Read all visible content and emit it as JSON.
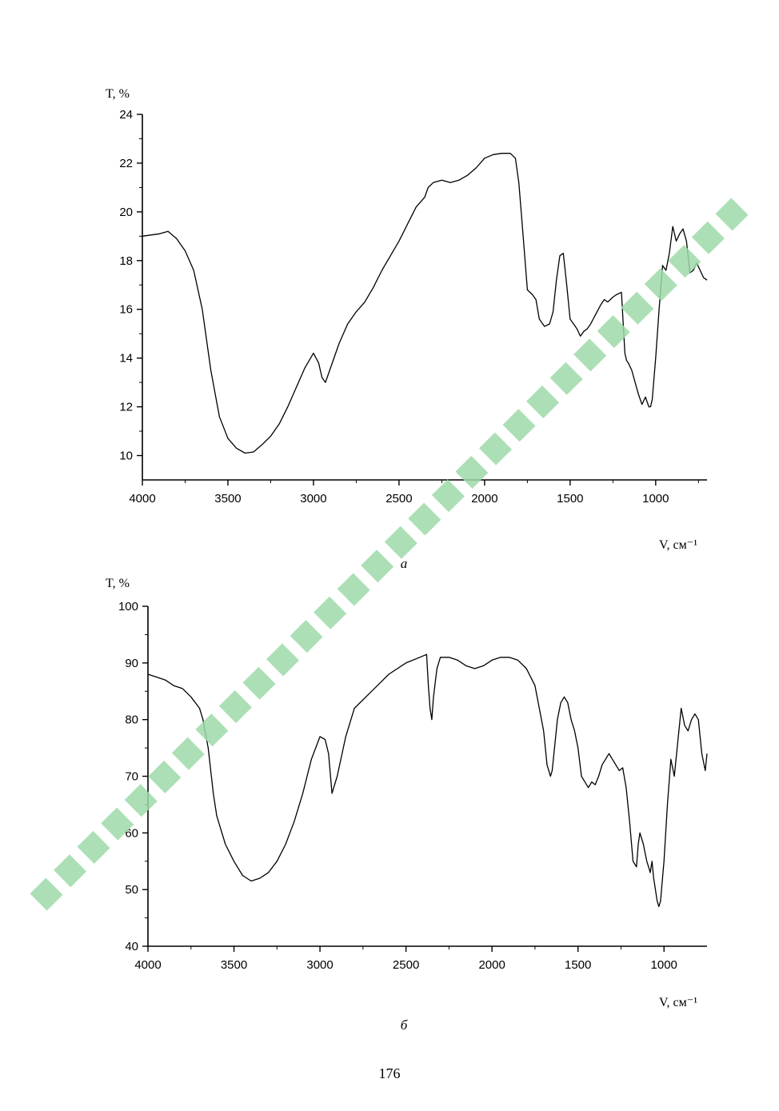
{
  "page_number": "176",
  "colors": {
    "line": "#000000",
    "watermark": "#9ed9a8"
  },
  "chart_data": [
    {
      "type": "line",
      "caption": "а",
      "ylabel": "T, %",
      "xlabel": "V, см⁻¹",
      "xlim": [
        4000,
        700
      ],
      "ylim": [
        9,
        24
      ],
      "x_ticks": [
        4000,
        3500,
        3000,
        2500,
        2000,
        1500,
        1000
      ],
      "y_ticks": [
        10,
        12,
        14,
        16,
        18,
        20,
        22,
        24
      ],
      "grid": false,
      "series": [
        {
          "x": [
            4000,
            3900,
            3850,
            3800,
            3750,
            3700,
            3650,
            3600,
            3550,
            3500,
            3450,
            3400,
            3350,
            3300,
            3250,
            3200,
            3150,
            3100,
            3050,
            3000,
            2970,
            2950,
            2930,
            2900,
            2850,
            2800,
            2750,
            2700,
            2650,
            2600,
            2550,
            2500,
            2450,
            2400,
            2350,
            2330,
            2300,
            2250,
            2200,
            2150,
            2100,
            2050,
            2000,
            1950,
            1900,
            1850,
            1820,
            1800,
            1780,
            1750,
            1720,
            1700,
            1680,
            1650,
            1620,
            1600,
            1580,
            1560,
            1540,
            1520,
            1500,
            1480,
            1460,
            1440,
            1420,
            1400,
            1380,
            1350,
            1320,
            1300,
            1280,
            1250,
            1230,
            1200,
            1180,
            1170,
            1160,
            1140,
            1120,
            1100,
            1080,
            1060,
            1040,
            1030,
            1020,
            1000,
            980,
            960,
            940,
            920,
            900,
            880,
            860,
            840,
            820,
            800,
            780,
            760,
            740,
            720,
            700
          ],
          "y": [
            19.0,
            19.1,
            19.2,
            18.9,
            18.4,
            17.6,
            16.0,
            13.5,
            11.6,
            10.7,
            10.3,
            10.1,
            10.15,
            10.45,
            10.8,
            11.3,
            12.0,
            12.8,
            13.6,
            14.2,
            13.8,
            13.2,
            13.0,
            13.6,
            14.6,
            15.4,
            15.9,
            16.3,
            16.9,
            17.6,
            18.2,
            18.8,
            19.5,
            20.2,
            20.6,
            21.0,
            21.2,
            21.3,
            21.2,
            21.3,
            21.5,
            21.8,
            22.2,
            22.35,
            22.4,
            22.4,
            22.2,
            21.2,
            19.5,
            16.8,
            16.6,
            16.4,
            15.6,
            15.3,
            15.4,
            15.9,
            17.2,
            18.2,
            18.3,
            17.0,
            15.6,
            15.4,
            15.2,
            14.9,
            15.1,
            15.2,
            15.4,
            15.8,
            16.2,
            16.4,
            16.3,
            16.5,
            16.6,
            16.7,
            14.2,
            13.9,
            13.8,
            13.5,
            13.0,
            12.5,
            12.1,
            12.4,
            12.0,
            12.0,
            12.3,
            14.0,
            16.0,
            17.8,
            17.6,
            18.3,
            19.4,
            18.8,
            19.1,
            19.3,
            18.8,
            17.5,
            17.6,
            17.9,
            17.6,
            17.3,
            17.2
          ]
        }
      ]
    },
    {
      "type": "line",
      "caption": "б",
      "ylabel": "T, %",
      "xlabel": "V, см⁻¹",
      "xlim": [
        4000,
        750
      ],
      "ylim": [
        40,
        100
      ],
      "x_ticks": [
        4000,
        3500,
        3000,
        2500,
        2000,
        1500,
        1000
      ],
      "y_ticks": [
        40,
        50,
        60,
        70,
        80,
        90,
        100
      ],
      "grid": false,
      "series": [
        {
          "x": [
            4000,
            3950,
            3900,
            3850,
            3800,
            3750,
            3700,
            3680,
            3650,
            3620,
            3600,
            3550,
            3500,
            3450,
            3400,
            3350,
            3300,
            3250,
            3200,
            3150,
            3100,
            3050,
            3000,
            2970,
            2950,
            2930,
            2900,
            2850,
            2800,
            2700,
            2600,
            2500,
            2420,
            2380,
            2370,
            2360,
            2350,
            2340,
            2320,
            2300,
            2250,
            2200,
            2150,
            2100,
            2050,
            2000,
            1950,
            1900,
            1850,
            1800,
            1750,
            1700,
            1680,
            1660,
            1650,
            1640,
            1620,
            1600,
            1580,
            1560,
            1540,
            1520,
            1500,
            1480,
            1460,
            1440,
            1420,
            1400,
            1380,
            1360,
            1340,
            1320,
            1300,
            1280,
            1260,
            1240,
            1220,
            1200,
            1180,
            1160,
            1150,
            1140,
            1120,
            1100,
            1090,
            1080,
            1070,
            1060,
            1050,
            1040,
            1030,
            1020,
            1000,
            980,
            960,
            940,
            920,
            900,
            880,
            860,
            840,
            820,
            800,
            780,
            760,
            750
          ],
          "y": [
            88,
            87.5,
            87,
            86,
            85.5,
            84,
            82,
            80,
            75,
            67,
            63,
            58,
            55,
            52.5,
            51.5,
            52,
            53,
            55,
            58,
            62,
            67,
            73,
            77,
            76.5,
            74,
            67,
            70,
            77,
            82,
            85,
            88,
            90,
            91,
            91.5,
            86,
            82,
            80,
            84,
            89,
            91,
            91,
            90.5,
            89.5,
            89,
            89.5,
            90.5,
            91,
            91,
            90.5,
            89,
            86,
            78,
            72,
            70,
            71,
            74,
            80,
            83,
            84,
            83,
            80,
            78,
            75,
            70,
            69,
            68,
            69,
            68.5,
            70,
            72,
            73,
            74,
            73,
            72,
            71,
            71.5,
            68,
            62,
            55,
            54,
            58,
            60,
            58,
            55,
            54,
            53,
            55,
            52,
            50,
            48,
            47,
            48,
            55,
            65,
            73,
            70,
            76,
            82,
            79,
            78,
            80,
            81,
            80,
            74,
            71,
            74
          ]
        }
      ]
    }
  ]
}
